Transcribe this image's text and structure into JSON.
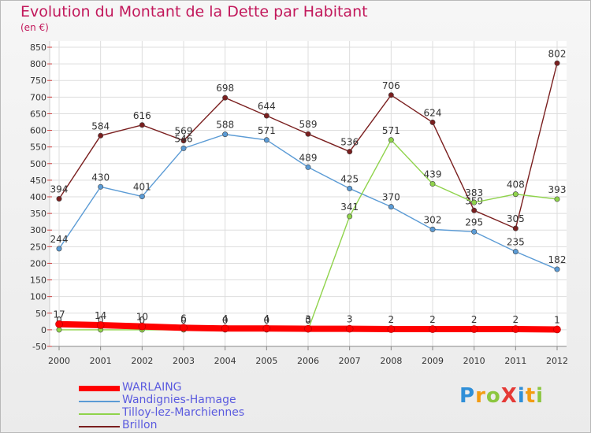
{
  "chart_data": {
    "type": "line",
    "title": "Evolution du Montant de la Dette par Habitant",
    "subtitle": "(en €)",
    "x": [
      "2000",
      "2001",
      "2002",
      "2003",
      "2004",
      "2005",
      "2006",
      "2007",
      "2008",
      "2009",
      "2010",
      "2011",
      "2012"
    ],
    "yticks": [
      -50,
      0,
      50,
      100,
      150,
      200,
      250,
      300,
      350,
      400,
      450,
      500,
      550,
      600,
      650,
      700,
      750,
      800,
      850
    ],
    "ylim": [
      -50,
      850
    ],
    "grid": true,
    "legend_position": "bottom-left",
    "series": [
      {
        "name": "WARLAING",
        "color": "#ff0000",
        "values": [
          17,
          14,
          10,
          6,
          4,
          4,
          3,
          3,
          2,
          2,
          2,
          2,
          1
        ]
      },
      {
        "name": "Wandignies-Hamage",
        "color": "#5b9bd5",
        "values": [
          244,
          430,
          401,
          546,
          588,
          571,
          489,
          425,
          370,
          302,
          295,
          235,
          182
        ]
      },
      {
        "name": "Tilloy-lez-Marchiennes",
        "color": "#8fd34b",
        "values": [
          0,
          0,
          0,
          0,
          0,
          0,
          0,
          341,
          571,
          439,
          383,
          408,
          393
        ]
      },
      {
        "name": "Brillon",
        "color": "#7a1f1f",
        "values": [
          394,
          584,
          616,
          569,
          698,
          644,
          589,
          536,
          706,
          624,
          359,
          305,
          802
        ]
      }
    ]
  },
  "logo": {
    "text": "ProXiti"
  }
}
